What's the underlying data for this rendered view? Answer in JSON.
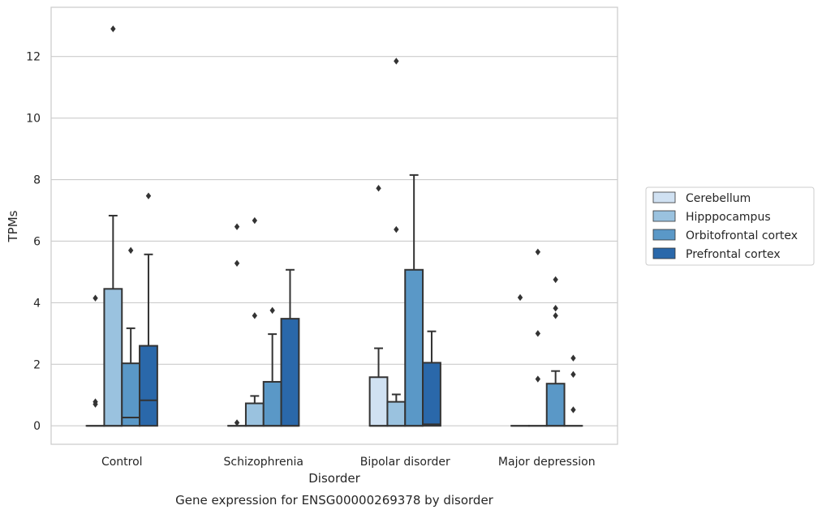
{
  "chart_data": {
    "type": "box",
    "title": "Gene expression for ENSG00000269378 by disorder",
    "xlabel": "Disorder",
    "ylabel": "TPMs",
    "ylim": [
      -0.6,
      13.6
    ],
    "yticks": [
      0,
      2,
      4,
      6,
      8,
      10,
      12
    ],
    "grid": true,
    "legend_position": "right",
    "categories": [
      "Control",
      "Schizophrenia",
      "Bipolar disorder",
      "Major depression"
    ],
    "series": [
      {
        "name": "Cerebellum",
        "color": "#d0e1f2",
        "boxes": [
          {
            "q1": 0,
            "median": 0,
            "q3": 0,
            "whisker_low": 0,
            "whisker_high": 0,
            "outliers": [
              4.15,
              0.78,
              0.7
            ]
          },
          {
            "q1": 0,
            "median": 0,
            "q3": 0,
            "whisker_low": 0,
            "whisker_high": 0,
            "outliers": [
              6.47,
              5.28,
              0.1
            ]
          },
          {
            "q1": 0,
            "median": 0,
            "q3": 1.58,
            "whisker_low": 0,
            "whisker_high": 2.52,
            "outliers": [
              7.72
            ]
          },
          {
            "q1": 0,
            "median": 0,
            "q3": 0,
            "whisker_low": 0,
            "whisker_high": 0,
            "outliers": [
              4.17
            ]
          }
        ]
      },
      {
        "name": "Hipppocampus",
        "color": "#9ac2df",
        "boxes": [
          {
            "q1": 0,
            "median": 0,
            "q3": 4.45,
            "whisker_low": 0,
            "whisker_high": 6.83,
            "outliers": [
              12.9
            ]
          },
          {
            "q1": 0,
            "median": 0,
            "q3": 0.73,
            "whisker_low": 0,
            "whisker_high": 0.97,
            "outliers": [
              6.67,
              3.58
            ]
          },
          {
            "q1": 0,
            "median": 0,
            "q3": 0.78,
            "whisker_low": 0,
            "whisker_high": 1.02,
            "outliers": [
              11.85,
              6.38
            ]
          },
          {
            "q1": 0,
            "median": 0,
            "q3": 0,
            "whisker_low": 0,
            "whisker_high": 0,
            "outliers": [
              5.65,
              3.0,
              1.52
            ]
          }
        ]
      },
      {
        "name": "Orbitofrontal cortex",
        "color": "#5a98c7",
        "boxes": [
          {
            "q1": 0,
            "median": 0.27,
            "q3": 2.03,
            "whisker_low": 0,
            "whisker_high": 3.17,
            "outliers": [
              5.7
            ]
          },
          {
            "q1": 0,
            "median": 0,
            "q3": 1.43,
            "whisker_low": 0,
            "whisker_high": 2.98,
            "outliers": [
              3.75
            ]
          },
          {
            "q1": 0,
            "median": 0,
            "q3": 5.07,
            "whisker_low": 0,
            "whisker_high": 8.15,
            "outliers": []
          },
          {
            "q1": 0,
            "median": 0,
            "q3": 1.37,
            "whisker_low": 0,
            "whisker_high": 1.78,
            "outliers": [
              4.75,
              3.82,
              3.58
            ]
          }
        ]
      },
      {
        "name": "Prefrontal cortex",
        "color": "#2a68aa",
        "boxes": [
          {
            "q1": 0,
            "median": 0.83,
            "q3": 2.6,
            "whisker_low": 0,
            "whisker_high": 5.57,
            "outliers": [
              7.47
            ]
          },
          {
            "q1": 0,
            "median": 0,
            "q3": 3.48,
            "whisker_low": 0,
            "whisker_high": 5.07,
            "outliers": []
          },
          {
            "q1": 0,
            "median": 0.05,
            "q3": 2.05,
            "whisker_low": 0,
            "whisker_high": 3.07,
            "outliers": []
          },
          {
            "q1": 0,
            "median": 0,
            "q3": 0,
            "whisker_low": 0,
            "whisker_high": 0,
            "outliers": [
              2.2,
              1.67,
              0.52
            ]
          }
        ]
      }
    ]
  }
}
